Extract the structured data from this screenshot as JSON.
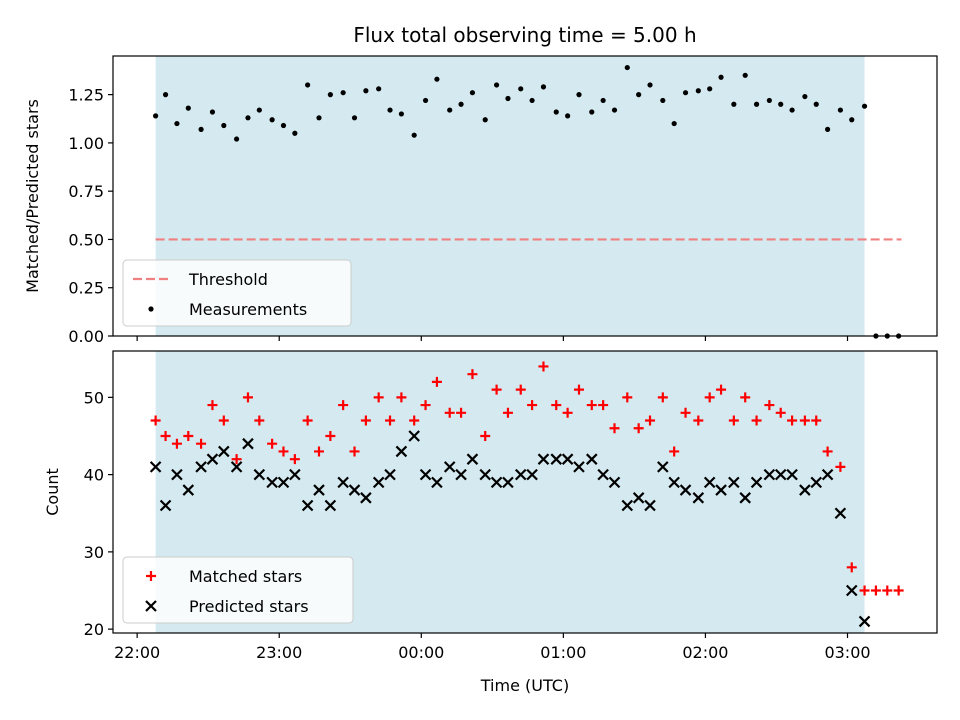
{
  "chart_data": {
    "type": "scatter",
    "title": "Flux total observing time = 5.00 h",
    "xlabel": "Time (UTC)",
    "x_tick_labels": [
      "22:00",
      "23:00",
      "00:00",
      "01:00",
      "02:00",
      "03:00"
    ],
    "x_tick_hours": [
      0,
      1,
      2,
      3,
      4,
      5
    ],
    "x_start_clock": "22:00",
    "xlim_hours": [
      -0.17,
      5.63
    ],
    "observing_span_hours": [
      0.13,
      5.12
    ],
    "shade_color": "#d4eaf0",
    "panels": [
      {
        "ylabel": "Matched/Predicted stars",
        "ylim": [
          0,
          1.45
        ],
        "y_ticks": [
          0.0,
          0.25,
          0.5,
          0.75,
          1.0,
          1.25
        ],
        "y_tick_labels": [
          "0.00",
          "0.25",
          "0.50",
          "0.75",
          "1.00",
          "1.25"
        ],
        "threshold": {
          "name": "Threshold",
          "value": 0.5,
          "x_range_hours": [
            0.13,
            5.38
          ],
          "color": "#f08080"
        },
        "legend": {
          "placement": "lower-left",
          "entries": [
            "Threshold",
            "Measurements"
          ]
        },
        "series": [
          {
            "name": "Measurements",
            "color": "#000000",
            "marker": "dot",
            "x_hours": [
              0.13,
              0.2,
              0.28,
              0.36,
              0.45,
              0.53,
              0.61,
              0.7,
              0.78,
              0.86,
              0.95,
              1.03,
              1.11,
              1.2,
              1.28,
              1.36,
              1.45,
              1.53,
              1.61,
              1.7,
              1.78,
              1.86,
              1.95,
              2.03,
              2.11,
              2.2,
              2.28,
              2.36,
              2.45,
              2.53,
              2.61,
              2.7,
              2.78,
              2.86,
              2.95,
              3.03,
              3.11,
              3.2,
              3.28,
              3.36,
              3.45,
              3.53,
              3.61,
              3.7,
              3.78,
              3.86,
              3.95,
              4.03,
              4.11,
              4.2,
              4.28,
              4.36,
              4.45,
              4.53,
              4.61,
              4.7,
              4.78,
              4.86,
              4.95,
              5.03,
              5.12,
              5.2,
              5.28,
              5.36
            ],
            "y": [
              1.14,
              1.25,
              1.1,
              1.18,
              1.07,
              1.16,
              1.09,
              1.02,
              1.13,
              1.17,
              1.12,
              1.09,
              1.05,
              1.3,
              1.13,
              1.25,
              1.26,
              1.13,
              1.27,
              1.28,
              1.17,
              1.15,
              1.04,
              1.22,
              1.33,
              1.17,
              1.2,
              1.26,
              1.12,
              1.3,
              1.23,
              1.28,
              1.22,
              1.29,
              1.16,
              1.14,
              1.25,
              1.16,
              1.22,
              1.17,
              1.39,
              1.25,
              1.3,
              1.22,
              1.1,
              1.26,
              1.27,
              1.28,
              1.34,
              1.2,
              1.35,
              1.2,
              1.22,
              1.2,
              1.17,
              1.24,
              1.2,
              1.07,
              1.17,
              1.12,
              1.19,
              0.0,
              0.0,
              0.0
            ]
          }
        ]
      },
      {
        "ylabel": "Count",
        "ylim": [
          19.5,
          56
        ],
        "y_ticks": [
          20,
          30,
          40,
          50
        ],
        "y_tick_labels": [
          "20",
          "30",
          "40",
          "50"
        ],
        "legend": {
          "placement": "lower-left",
          "entries": [
            "Matched stars",
            "Predicted stars"
          ]
        },
        "series": [
          {
            "name": "Matched stars",
            "color": "#ff0000",
            "marker": "plus",
            "x_hours": [
              0.13,
              0.2,
              0.28,
              0.36,
              0.45,
              0.53,
              0.61,
              0.7,
              0.78,
              0.86,
              0.95,
              1.03,
              1.11,
              1.2,
              1.28,
              1.36,
              1.45,
              1.53,
              1.61,
              1.7,
              1.78,
              1.86,
              1.95,
              2.03,
              2.11,
              2.2,
              2.28,
              2.36,
              2.45,
              2.53,
              2.61,
              2.7,
              2.78,
              2.86,
              2.95,
              3.03,
              3.11,
              3.2,
              3.28,
              3.36,
              3.45,
              3.53,
              3.61,
              3.7,
              3.78,
              3.86,
              3.95,
              4.03,
              4.11,
              4.2,
              4.28,
              4.36,
              4.45,
              4.53,
              4.61,
              4.7,
              4.78,
              4.86,
              4.95,
              5.03,
              5.12,
              5.2,
              5.28,
              5.36
            ],
            "y": [
              47,
              45,
              44,
              45,
              44,
              49,
              47,
              42,
              50,
              47,
              44,
              43,
              42,
              47,
              43,
              45,
              49,
              43,
              47,
              50,
              47,
              50,
              47,
              49,
              52,
              48,
              48,
              53,
              45,
              51,
              48,
              51,
              49,
              54,
              49,
              48,
              51,
              49,
              49,
              46,
              50,
              46,
              47,
              50,
              43,
              48,
              47,
              50,
              51,
              47,
              50,
              47,
              49,
              48,
              47,
              47,
              47,
              43,
              41,
              28,
              25,
              25,
              25,
              25
            ]
          },
          {
            "name": "Predicted stars",
            "color": "#000000",
            "marker": "x",
            "x_hours": [
              0.13,
              0.2,
              0.28,
              0.36,
              0.45,
              0.53,
              0.61,
              0.7,
              0.78,
              0.86,
              0.95,
              1.03,
              1.11,
              1.2,
              1.28,
              1.36,
              1.45,
              1.53,
              1.61,
              1.7,
              1.78,
              1.86,
              1.95,
              2.03,
              2.11,
              2.2,
              2.28,
              2.36,
              2.45,
              2.53,
              2.61,
              2.7,
              2.78,
              2.86,
              2.95,
              3.03,
              3.11,
              3.2,
              3.28,
              3.36,
              3.45,
              3.53,
              3.61,
              3.7,
              3.78,
              3.86,
              3.95,
              4.03,
              4.11,
              4.2,
              4.28,
              4.36,
              4.45,
              4.53,
              4.61,
              4.7,
              4.78,
              4.86,
              4.95,
              5.03,
              5.12
            ],
            "y": [
              41,
              36,
              40,
              38,
              41,
              42,
              43,
              41,
              44,
              40,
              39,
              39,
              40,
              36,
              38,
              36,
              39,
              38,
              37,
              39,
              40,
              43,
              45,
              40,
              39,
              41,
              40,
              42,
              40,
              39,
              39,
              40,
              40,
              42,
              42,
              42,
              41,
              42,
              40,
              39,
              36,
              37,
              36,
              41,
              39,
              38,
              37,
              39,
              38,
              39,
              37,
              39,
              40,
              40,
              40,
              38,
              39,
              40,
              35,
              25,
              21
            ]
          }
        ]
      }
    ]
  }
}
